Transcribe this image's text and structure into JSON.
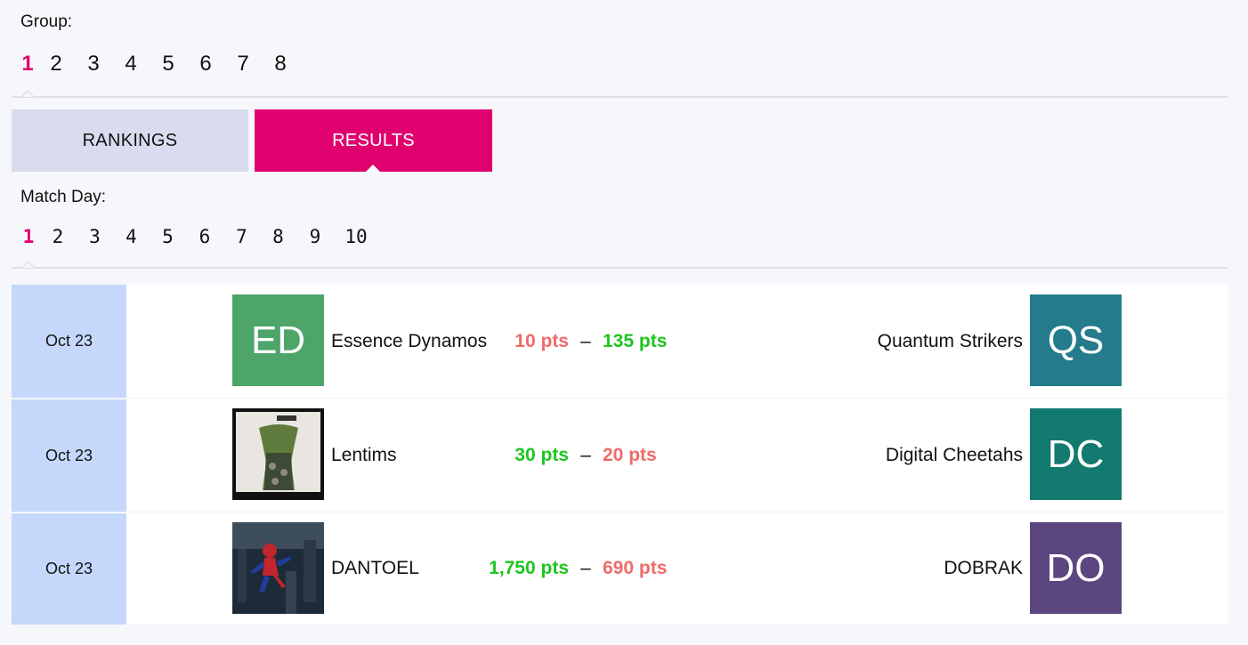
{
  "group": {
    "label": "Group:",
    "items": [
      "1",
      "2",
      "3",
      "4",
      "5",
      "6",
      "7",
      "8"
    ],
    "active": "1"
  },
  "tabs": {
    "rankings": "RANKINGS",
    "results": "RESULTS",
    "active": "results"
  },
  "match_day": {
    "label": "Match Day:",
    "items": [
      "1",
      "2",
      "3",
      "4",
      "5",
      "6",
      "7",
      "8",
      "9",
      "10"
    ],
    "active": "1"
  },
  "colors": {
    "accent": "#e0006e",
    "win": "#1ec51e",
    "lose": "#f06a6a",
    "date_bg": "#c5d8fc"
  },
  "matches": [
    {
      "date": "Oct 23",
      "home": {
        "name": "Essence Dynamos",
        "initials": "ED",
        "color": "#4ea56a",
        "avatar_type": "initials"
      },
      "home_score": "10 pts",
      "home_result": "lose",
      "away_score": "135 pts",
      "away_result": "win",
      "away": {
        "name": "Quantum Strikers",
        "initials": "QS",
        "color": "#237b8b",
        "avatar_type": "initials"
      }
    },
    {
      "date": "Oct 23",
      "home": {
        "name": "Lentims",
        "avatar_type": "photo",
        "photo_icon": "dress-photo-icon"
      },
      "home_score": "30 pts",
      "home_result": "win",
      "away_score": "20 pts",
      "away_result": "lose",
      "away": {
        "name": "Digital Cheetahs",
        "initials": "DC",
        "color": "#127a6e",
        "avatar_type": "initials"
      }
    },
    {
      "date": "Oct 23",
      "home": {
        "name": "DANTOEL",
        "avatar_type": "photo",
        "photo_icon": "spiderman-photo-icon"
      },
      "home_score": "1,750 pts",
      "home_result": "win",
      "away_score": "690 pts",
      "away_result": "lose",
      "away": {
        "name": "DOBRAK",
        "initials": "DO",
        "color": "#5c4680",
        "avatar_type": "initials"
      }
    }
  ]
}
